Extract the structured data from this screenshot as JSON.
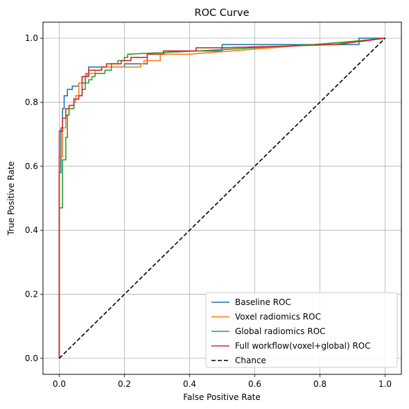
{
  "chart_data": {
    "type": "line",
    "title": "ROC Curve",
    "xlabel": "False Positive Rate",
    "ylabel": "True Positive Rate",
    "xlim": [
      -0.05,
      1.05
    ],
    "ylim": [
      -0.05,
      1.05
    ],
    "xticks": [
      "0.0",
      "0.2",
      "0.4",
      "0.6",
      "0.8",
      "1.0"
    ],
    "yticks": [
      "0.0",
      "0.2",
      "0.4",
      "0.6",
      "0.8",
      "1.0"
    ],
    "grid": true,
    "legend_position": "lower-right",
    "series": [
      {
        "name": "Baseline ROC",
        "color": "#1f77b4",
        "style": "solid",
        "points": [
          [
            0,
            0
          ],
          [
            0,
            0.58
          ],
          [
            0.005,
            0.58
          ],
          [
            0.005,
            0.72
          ],
          [
            0.01,
            0.72
          ],
          [
            0.01,
            0.78
          ],
          [
            0.015,
            0.78
          ],
          [
            0.015,
            0.82
          ],
          [
            0.025,
            0.82
          ],
          [
            0.025,
            0.84
          ],
          [
            0.04,
            0.84
          ],
          [
            0.04,
            0.85
          ],
          [
            0.06,
            0.85
          ],
          [
            0.06,
            0.86
          ],
          [
            0.08,
            0.86
          ],
          [
            0.08,
            0.88
          ],
          [
            0.085,
            0.88
          ],
          [
            0.085,
            0.89
          ],
          [
            0.09,
            0.89
          ],
          [
            0.09,
            0.91
          ],
          [
            0.2,
            0.91
          ],
          [
            0.2,
            0.92
          ],
          [
            0.27,
            0.92
          ],
          [
            0.27,
            0.95
          ],
          [
            0.32,
            0.95
          ],
          [
            0.32,
            0.96
          ],
          [
            0.5,
            0.96
          ],
          [
            0.5,
            0.98
          ],
          [
            0.92,
            0.98
          ],
          [
            0.92,
            1.0
          ],
          [
            1.0,
            1.0
          ]
        ]
      },
      {
        "name": "Voxel radiomics ROC",
        "color": "#ff7f0e",
        "style": "solid",
        "points": [
          [
            0,
            0
          ],
          [
            0,
            0.63
          ],
          [
            0.01,
            0.63
          ],
          [
            0.01,
            0.72
          ],
          [
            0.02,
            0.72
          ],
          [
            0.02,
            0.76
          ],
          [
            0.03,
            0.76
          ],
          [
            0.03,
            0.78
          ],
          [
            0.045,
            0.78
          ],
          [
            0.045,
            0.8
          ],
          [
            0.05,
            0.8
          ],
          [
            0.05,
            0.82
          ],
          [
            0.06,
            0.82
          ],
          [
            0.06,
            0.86
          ],
          [
            0.07,
            0.86
          ],
          [
            0.07,
            0.88
          ],
          [
            0.08,
            0.88
          ],
          [
            0.08,
            0.89
          ],
          [
            0.11,
            0.89
          ],
          [
            0.11,
            0.9
          ],
          [
            0.13,
            0.9
          ],
          [
            0.13,
            0.91
          ],
          [
            0.25,
            0.91
          ],
          [
            0.25,
            0.92
          ],
          [
            0.26,
            0.92
          ],
          [
            0.26,
            0.93
          ],
          [
            0.31,
            0.93
          ],
          [
            0.31,
            0.95
          ],
          [
            0.4,
            0.95
          ],
          [
            0.78,
            0.98
          ],
          [
            0.93,
            0.99
          ],
          [
            1.0,
            1.0
          ]
        ]
      },
      {
        "name": "Global radiomics ROC",
        "color": "#2ca02c",
        "style": "solid",
        "points": [
          [
            0,
            0
          ],
          [
            0,
            0.47
          ],
          [
            0.01,
            0.47
          ],
          [
            0.01,
            0.62
          ],
          [
            0.02,
            0.62
          ],
          [
            0.02,
            0.69
          ],
          [
            0.025,
            0.69
          ],
          [
            0.025,
            0.76
          ],
          [
            0.03,
            0.76
          ],
          [
            0.03,
            0.78
          ],
          [
            0.045,
            0.78
          ],
          [
            0.045,
            0.81
          ],
          [
            0.06,
            0.81
          ],
          [
            0.06,
            0.82
          ],
          [
            0.07,
            0.82
          ],
          [
            0.07,
            0.84
          ],
          [
            0.08,
            0.84
          ],
          [
            0.08,
            0.86
          ],
          [
            0.09,
            0.86
          ],
          [
            0.09,
            0.87
          ],
          [
            0.1,
            0.87
          ],
          [
            0.1,
            0.88
          ],
          [
            0.11,
            0.88
          ],
          [
            0.11,
            0.89
          ],
          [
            0.14,
            0.89
          ],
          [
            0.14,
            0.9
          ],
          [
            0.16,
            0.9
          ],
          [
            0.16,
            0.92
          ],
          [
            0.18,
            0.92
          ],
          [
            0.18,
            0.93
          ],
          [
            0.2,
            0.93
          ],
          [
            0.2,
            0.94
          ],
          [
            0.21,
            0.94
          ],
          [
            0.21,
            0.95
          ],
          [
            0.42,
            0.96
          ],
          [
            0.78,
            0.98
          ],
          [
            0.9,
            0.99
          ],
          [
            1.0,
            1.0
          ]
        ]
      },
      {
        "name": "Full workflow(voxel+global) ROC",
        "color": "#d62728",
        "style": "solid",
        "points": [
          [
            0,
            0
          ],
          [
            0,
            0.71
          ],
          [
            0.01,
            0.71
          ],
          [
            0.01,
            0.75
          ],
          [
            0.02,
            0.75
          ],
          [
            0.02,
            0.78
          ],
          [
            0.03,
            0.78
          ],
          [
            0.03,
            0.79
          ],
          [
            0.045,
            0.79
          ],
          [
            0.045,
            0.81
          ],
          [
            0.06,
            0.81
          ],
          [
            0.06,
            0.82
          ],
          [
            0.07,
            0.82
          ],
          [
            0.07,
            0.88
          ],
          [
            0.09,
            0.88
          ],
          [
            0.09,
            0.9
          ],
          [
            0.13,
            0.9
          ],
          [
            0.13,
            0.91
          ],
          [
            0.145,
            0.91
          ],
          [
            0.145,
            0.92
          ],
          [
            0.19,
            0.92
          ],
          [
            0.19,
            0.93
          ],
          [
            0.22,
            0.93
          ],
          [
            0.22,
            0.94
          ],
          [
            0.27,
            0.94
          ],
          [
            0.27,
            0.95
          ],
          [
            0.32,
            0.95
          ],
          [
            0.32,
            0.96
          ],
          [
            0.42,
            0.96
          ],
          [
            0.42,
            0.97
          ],
          [
            0.5,
            0.97
          ],
          [
            0.85,
            0.98
          ],
          [
            1.0,
            1.0
          ]
        ]
      },
      {
        "name": "Chance",
        "color": "#000000",
        "style": "dashed",
        "points": [
          [
            0,
            0
          ],
          [
            1,
            1
          ]
        ]
      }
    ]
  }
}
